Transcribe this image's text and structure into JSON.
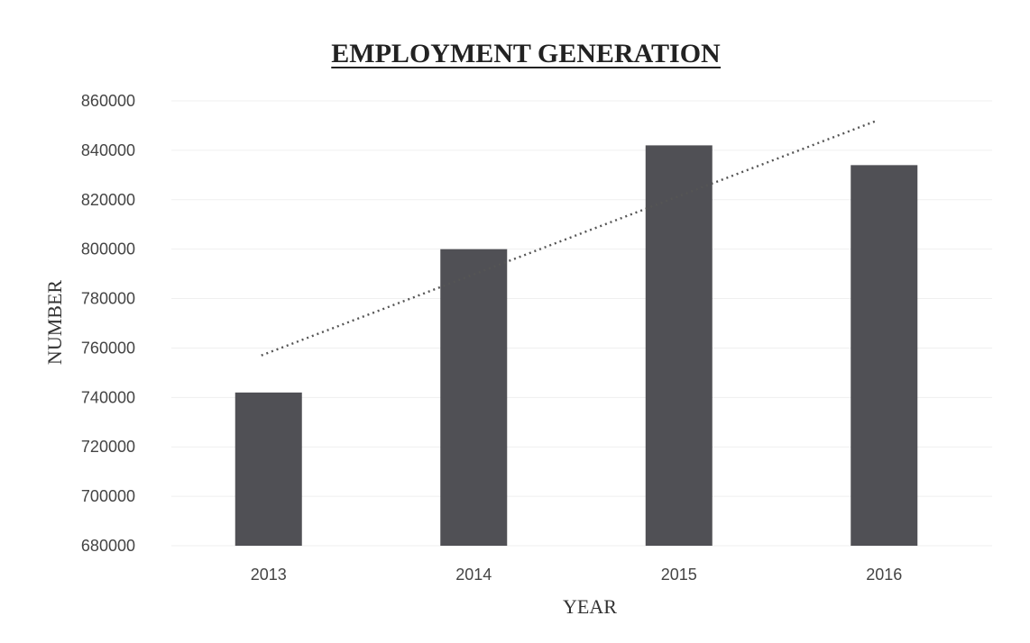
{
  "chart_data": {
    "type": "bar",
    "title": "EMPLOYMENT GENERATION",
    "xlabel": "YEAR",
    "ylabel": "NUMBER",
    "categories": [
      "2013",
      "2014",
      "2015",
      "2016"
    ],
    "series": [
      {
        "values": [
          742000,
          800000,
          842000,
          834000
        ]
      }
    ],
    "ylim": [
      680000,
      860000
    ],
    "yticks": [
      680000,
      700000,
      720000,
      740000,
      760000,
      780000,
      800000,
      820000,
      840000,
      860000
    ],
    "ytick_labels": [
      "680000",
      "700000",
      "720000",
      "740000",
      "760000",
      "780000",
      "800000",
      "820000",
      "840000",
      "860000"
    ],
    "trendline": {
      "type": "linear",
      "style": "dotted",
      "start": 757000,
      "end": 852000
    },
    "grid": true,
    "legend": "none",
    "colors": {
      "bar": "#505055",
      "trendline": "#555555",
      "grid": "#efefef"
    }
  }
}
